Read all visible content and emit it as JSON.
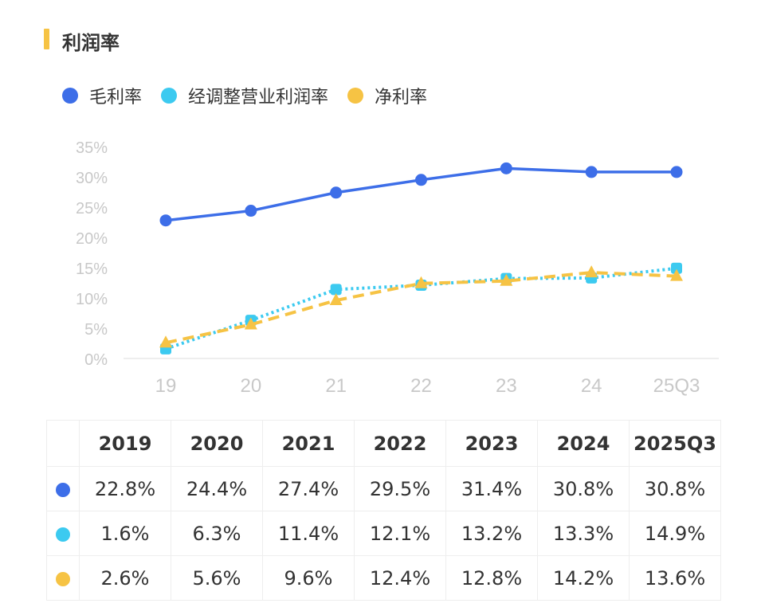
{
  "title": "利润率",
  "colors": {
    "title_bar": "#f6c344",
    "gross": "#3d6ee8",
    "adj_op": "#3ccaf0",
    "net": "#f6c344",
    "axis_text": "#c8c8c8",
    "grid": "#eeeeee"
  },
  "chart_data": {
    "type": "line",
    "title": "利润率",
    "categories": [
      "19",
      "20",
      "21",
      "22",
      "23",
      "24",
      "25Q3"
    ],
    "yticks": [
      "0%",
      "5%",
      "10%",
      "15%",
      "20%",
      "25%",
      "30%",
      "35%"
    ],
    "ylim": [
      0,
      35
    ],
    "legend_position": "top-left",
    "grid": false,
    "series": [
      {
        "name": "毛利率",
        "color": "#3d6ee8",
        "marker": "circle",
        "line": "solid",
        "values": [
          22.8,
          24.4,
          27.4,
          29.5,
          31.4,
          30.8,
          30.8
        ]
      },
      {
        "name": "经调整营业利润率",
        "color": "#3ccaf0",
        "marker": "square",
        "line": "dotted",
        "values": [
          1.6,
          6.3,
          11.4,
          12.1,
          13.2,
          13.3,
          14.9
        ]
      },
      {
        "name": "净利率",
        "color": "#f6c344",
        "marker": "triangle",
        "line": "dashed",
        "values": [
          2.6,
          5.6,
          9.6,
          12.4,
          12.8,
          14.2,
          13.6
        ]
      }
    ]
  },
  "table": {
    "headers": [
      "2019",
      "2020",
      "2021",
      "2022",
      "2023",
      "2024",
      "2025Q3"
    ],
    "rows": [
      {
        "color": "#3d6ee8",
        "cells": [
          "22.8%",
          "24.4%",
          "27.4%",
          "29.5%",
          "31.4%",
          "30.8%",
          "30.8%"
        ]
      },
      {
        "color": "#3ccaf0",
        "cells": [
          "1.6%",
          "6.3%",
          "11.4%",
          "12.1%",
          "13.2%",
          "13.3%",
          "14.9%"
        ]
      },
      {
        "color": "#f6c344",
        "cells": [
          "2.6%",
          "5.6%",
          "9.6%",
          "12.4%",
          "12.8%",
          "14.2%",
          "13.6%"
        ]
      }
    ]
  }
}
